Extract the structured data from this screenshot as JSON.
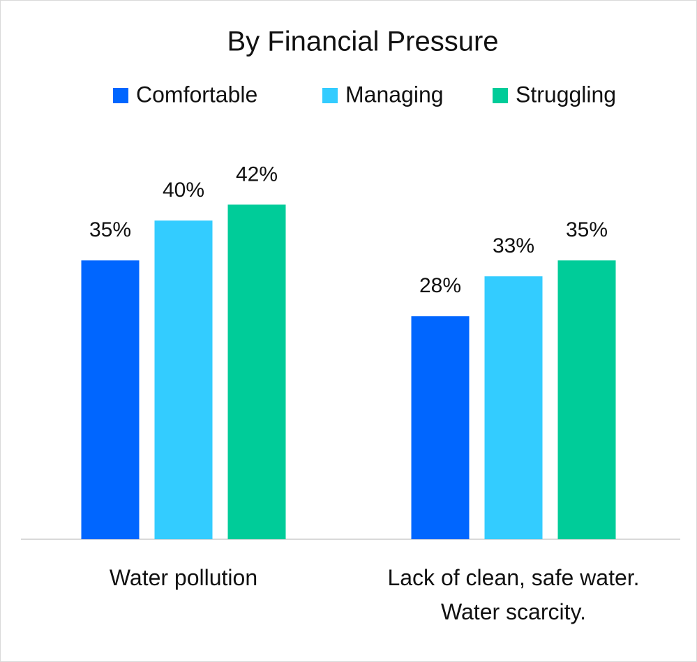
{
  "chart_data": {
    "type": "bar",
    "title": "By Financial Pressure",
    "categories": [
      "Water pollution",
      "Lack of clean, safe water. Water scarcity."
    ],
    "series": [
      {
        "name": "Comfortable",
        "color": "#0066ff",
        "values": [
          35,
          28
        ],
        "value_labels": [
          "35%",
          "28%"
        ]
      },
      {
        "name": "Managing",
        "color": "#33ccff",
        "values": [
          40,
          33
        ],
        "value_labels": [
          "40%",
          "33%"
        ]
      },
      {
        "name": "Struggling",
        "color": "#00cc99",
        "values": [
          42,
          35
        ],
        "value_labels": [
          "42%",
          "35%"
        ]
      }
    ],
    "ylim": [
      0,
      50
    ],
    "legend": "top"
  }
}
